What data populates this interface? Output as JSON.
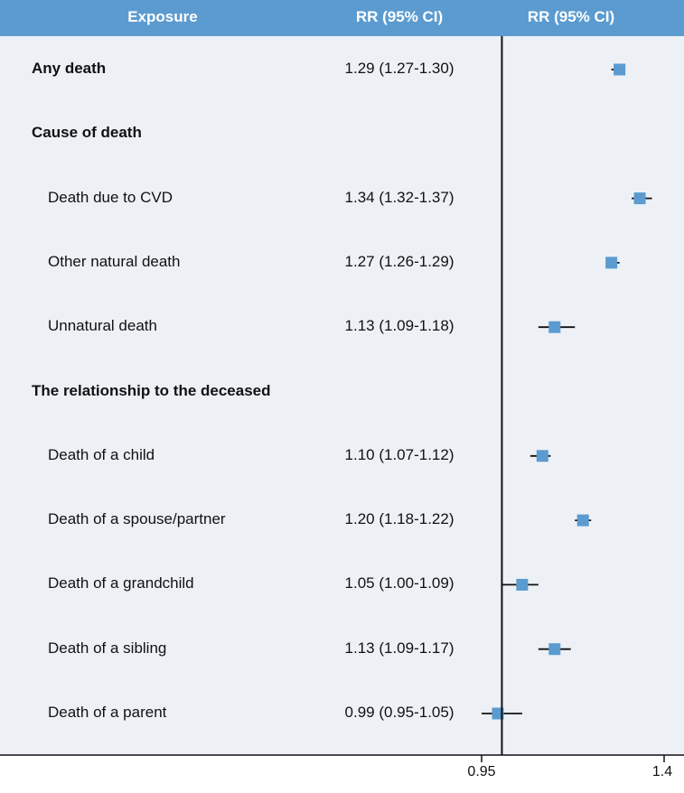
{
  "header": {
    "exposure": "Exposure",
    "rr_ci": "RR (95% CI)",
    "plot": "RR (95% CI)"
  },
  "colors": {
    "header_bg": "#5b9bd0",
    "panel_bg": "#edf1f6",
    "marker": "#5b9bd0",
    "line": "#111111"
  },
  "rows": [
    {
      "label": "Any death",
      "ci_text": "1.29 (1.27-1.30)",
      "bold": true,
      "indent": false
    },
    {
      "label": "Cause of death",
      "ci_text": "",
      "bold": true,
      "indent": false
    },
    {
      "label": "Death due to CVD",
      "ci_text": "1.34 (1.32-1.37)",
      "bold": false,
      "indent": true
    },
    {
      "label": "Other natural death",
      "ci_text": "1.27 (1.26-1.29)",
      "bold": false,
      "indent": true
    },
    {
      "label": "Unnatural death",
      "ci_text": "1.13 (1.09-1.18)",
      "bold": false,
      "indent": true
    },
    {
      "label": "The relationship to the deceased",
      "ci_text": "",
      "bold": true,
      "indent": false
    },
    {
      "label": "Death of a child",
      "ci_text": "1.10 (1.07-1.12)",
      "bold": false,
      "indent": true
    },
    {
      "label": "Death of a spouse/partner",
      "ci_text": "1.20 (1.18-1.22)",
      "bold": false,
      "indent": true
    },
    {
      "label": "Death of a grandchild",
      "ci_text": "1.05 (1.00-1.09)",
      "bold": false,
      "indent": true
    },
    {
      "label": "Death of a sibling",
      "ci_text": "1.13 (1.09-1.17)",
      "bold": false,
      "indent": true
    },
    {
      "label": "Death of a parent",
      "ci_text": "0.99 (0.95-1.05)",
      "bold": false,
      "indent": true
    }
  ],
  "chart_data": {
    "type": "scatter",
    "subtype": "forest",
    "xlim": [
      0.95,
      1.4
    ],
    "xticks": [
      "0.95",
      "1.4"
    ],
    "reference_line": 1.0,
    "grid": false,
    "series": [
      {
        "points": [
          {
            "category": "Any death",
            "rr": 1.29,
            "lo": 1.27,
            "hi": 1.3
          },
          {
            "category": "Death due to CVD",
            "rr": 1.34,
            "lo": 1.32,
            "hi": 1.37
          },
          {
            "category": "Other natural death",
            "rr": 1.27,
            "lo": 1.26,
            "hi": 1.29
          },
          {
            "category": "Unnatural death",
            "rr": 1.13,
            "lo": 1.09,
            "hi": 1.18
          },
          {
            "category": "Death of a child",
            "rr": 1.1,
            "lo": 1.07,
            "hi": 1.12
          },
          {
            "category": "Death of a spouse/partner",
            "rr": 1.2,
            "lo": 1.18,
            "hi": 1.22
          },
          {
            "category": "Death of a grandchild",
            "rr": 1.05,
            "lo": 1.0,
            "hi": 1.09
          },
          {
            "category": "Death of a sibling",
            "rr": 1.13,
            "lo": 1.09,
            "hi": 1.17
          },
          {
            "category": "Death of a parent",
            "rr": 0.99,
            "lo": 0.95,
            "hi": 1.05
          }
        ]
      }
    ]
  }
}
